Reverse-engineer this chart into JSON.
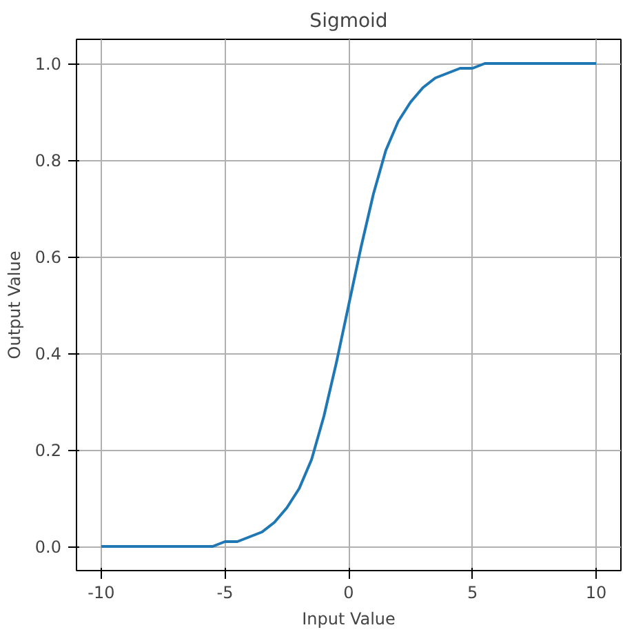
{
  "chart_data": {
    "type": "line",
    "title": "Sigmoid",
    "xlabel": "Input Value",
    "ylabel": "Output Value",
    "x": [
      -10,
      -9.5,
      -9,
      -8.5,
      -8,
      -7.5,
      -7,
      -6.5,
      -6,
      -5.5,
      -5,
      -4.5,
      -4,
      -3.5,
      -3,
      -2.5,
      -2,
      -1.5,
      -1,
      -0.5,
      0,
      0.5,
      1,
      1.5,
      2,
      2.5,
      3,
      3.5,
      4,
      4.5,
      5,
      5.5,
      6,
      6.5,
      7,
      7.5,
      8,
      8.5,
      9,
      9.5,
      10
    ],
    "series": [
      {
        "color": "#1f77b4",
        "values": [
          0,
          0,
          0,
          0,
          0,
          0,
          0,
          0,
          0,
          0,
          0.01,
          0.01,
          0.02,
          0.03,
          0.05,
          0.08,
          0.12,
          0.18,
          0.27,
          0.38,
          0.5,
          0.62,
          0.73,
          0.82,
          0.88,
          0.92,
          0.95,
          0.97,
          0.98,
          0.99,
          0.99,
          1,
          1,
          1,
          1,
          1,
          1,
          1,
          1,
          1,
          1
        ]
      }
    ],
    "xlim": [
      -11,
      11
    ],
    "ylim": [
      -0.05,
      1.05
    ],
    "xticks": [
      -10,
      -5,
      0,
      5,
      10
    ],
    "yticks": [
      {
        "value": 0,
        "label": "0.0"
      },
      {
        "value": 0.2,
        "label": "0.2"
      },
      {
        "value": 0.4,
        "label": "0.4"
      },
      {
        "value": 0.6,
        "label": "0.6"
      },
      {
        "value": 0.8,
        "label": "0.8"
      },
      {
        "value": 1,
        "label": "1.0"
      }
    ],
    "grid": true,
    "line_style": "solid"
  }
}
